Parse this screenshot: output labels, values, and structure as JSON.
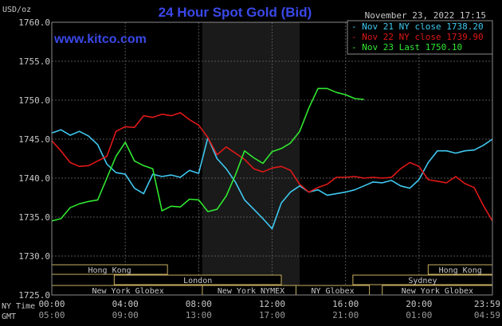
{
  "header": {
    "title": "24 Hour Spot Gold (Bid)",
    "site": "www.kitco.com",
    "timestamp": "November 23, 2022 17:15",
    "unit": "USD/oz"
  },
  "colors": {
    "background": "#000000",
    "plot_background": "#000000",
    "grid": "#555555",
    "text": "#c8c8c8",
    "title": "#3a48e8",
    "site": "#3a48e8",
    "nov21": "#3fc8f0",
    "nov22": "#e01818",
    "nov23": "#30e830",
    "session_fill": "#1a1a1a",
    "band_border": "#c8b060"
  },
  "chart_data": {
    "type": "line",
    "ylim": [
      1725,
      1760
    ],
    "y_ticks": [
      "1760.0",
      "1755.0",
      "1750.0",
      "1745.0",
      "1740.0",
      "1735.0",
      "1730.0",
      "1725.0"
    ],
    "x_ticks_ny": [
      "00:00",
      "04:00",
      "08:00",
      "12:00",
      "16:00",
      "20:00",
      "23:59"
    ],
    "x_ticks_gmt": [
      "05:00",
      "09:00",
      "13:00",
      "17:00",
      "21:00",
      "01:00",
      "04:59"
    ],
    "x_row_label_ny": "NY Time",
    "x_row_label_gmt": "GMT",
    "legend": [
      {
        "text": "Nov 21 NY close 1738.20",
        "color": "#3fc8f0"
      },
      {
        "text": "Nov 22 NY close 1739.90",
        "color": "#e01818"
      },
      {
        "text": "Nov 23 Last 1750.10",
        "color": "#30e830"
      }
    ],
    "legend_position": "top-right",
    "sessions": [
      {
        "name": "Hong Kong",
        "start": 0,
        "end": 6.3,
        "row": 0
      },
      {
        "name": "Hong Kong",
        "start": 20.5,
        "end": 24,
        "row": 0
      },
      {
        "name": "London",
        "start": 3.4,
        "end": 12.5,
        "row": 1
      },
      {
        "name": "Sydney",
        "start": 16.4,
        "end": 24,
        "row": 1
      },
      {
        "name": "New York Globex",
        "start": 0,
        "end": 8.3,
        "row": 2
      },
      {
        "name": "New York NYMEX",
        "start": 8.2,
        "end": 13.5,
        "row": 2
      },
      {
        "name": "NY Globex",
        "start": 13.3,
        "end": 17.3,
        "row": 2
      },
      {
        "name": "New York Globex",
        "start": 18.0,
        "end": 24,
        "row": 2
      }
    ],
    "highlight_range": [
      8.2,
      13.5
    ],
    "series": [
      {
        "name": "Nov 21 NY close 1738.20",
        "color": "#3fc8f0",
        "x": [
          0,
          0.5,
          1.0,
          1.5,
          2.0,
          2.5,
          3.0,
          3.5,
          4.0,
          4.5,
          5.0,
          5.5,
          6.0,
          6.5,
          7.0,
          7.5,
          8.0,
          8.5,
          9.0,
          9.5,
          10.0,
          10.5,
          11.0,
          11.5,
          12.0,
          12.5,
          13.0,
          13.5,
          14.0,
          14.5,
          15.0,
          15.5,
          16.0,
          16.5,
          17.0,
          17.5,
          18.0,
          18.5,
          19.0,
          19.5,
          20.0,
          20.5,
          21.0,
          21.5,
          22.0,
          22.5,
          23.0,
          23.5,
          24.0
        ],
        "y": [
          1745.8,
          1746.2,
          1745.5,
          1746.0,
          1745.4,
          1744.3,
          1741.8,
          1740.7,
          1740.5,
          1738.7,
          1738.0,
          1740.5,
          1740.2,
          1740.4,
          1740.1,
          1741.0,
          1740.6,
          1745.2,
          1742.5,
          1741.2,
          1739.5,
          1737.2,
          1736.0,
          1734.8,
          1733.5,
          1736.8,
          1738.2,
          1739.0,
          1738.2,
          1738.5,
          1737.8,
          1738.0,
          1738.2,
          1738.5,
          1739.0,
          1739.5,
          1739.4,
          1739.7,
          1739.0,
          1738.7,
          1739.8,
          1742.0,
          1743.5,
          1743.5,
          1743.2,
          1743.5,
          1743.6,
          1744.2,
          1745.0
        ]
      },
      {
        "name": "Nov 22 NY close 1739.90",
        "color": "#e01818",
        "x": [
          0,
          0.5,
          1.0,
          1.5,
          2.0,
          2.5,
          3.0,
          3.5,
          4.0,
          4.5,
          5.0,
          5.5,
          6.0,
          6.5,
          7.0,
          7.5,
          8.0,
          8.5,
          9.0,
          9.5,
          10.0,
          10.5,
          11.0,
          11.5,
          12.0,
          12.5,
          13.0,
          13.5,
          14.0,
          14.5,
          15.0,
          15.5,
          16.0,
          16.5,
          17.0,
          17.5,
          18.0,
          18.5,
          19.0,
          19.5,
          20.0,
          20.5,
          21.0,
          21.5,
          22.0,
          22.5,
          23.0,
          23.5,
          24.0
        ],
        "y": [
          1744.8,
          1743.5,
          1742.0,
          1741.5,
          1741.6,
          1742.2,
          1742.8,
          1746.0,
          1746.6,
          1746.5,
          1748.0,
          1747.8,
          1748.2,
          1748.0,
          1748.4,
          1747.5,
          1746.8,
          1745.2,
          1743.0,
          1744.0,
          1743.2,
          1742.4,
          1741.2,
          1740.8,
          1741.3,
          1741.5,
          1741.0,
          1739.2,
          1738.2,
          1738.8,
          1739.2,
          1740.1,
          1740.1,
          1740.2,
          1740.0,
          1740.1,
          1740.0,
          1740.1,
          1741.2,
          1742.0,
          1741.5,
          1739.8,
          1739.6,
          1739.4,
          1740.2,
          1739.3,
          1738.8,
          1736.5,
          1734.5
        ]
      },
      {
        "name": "Nov 23 Last 1750.10",
        "color": "#30e830",
        "x": [
          0,
          0.5,
          1.0,
          1.5,
          2.0,
          2.5,
          3.0,
          3.5,
          4.0,
          4.5,
          5.0,
          5.5,
          6.0,
          6.5,
          7.0,
          7.5,
          8.0,
          8.5,
          9.0,
          9.5,
          10.0,
          10.5,
          11.0,
          11.5,
          12.0,
          12.5,
          13.0,
          13.5,
          14.0,
          14.5,
          15.0,
          15.5,
          16.0,
          16.5,
          17.0
        ],
        "y": [
          1734.5,
          1734.8,
          1736.2,
          1736.7,
          1737.0,
          1737.2,
          1740.0,
          1742.8,
          1744.6,
          1742.2,
          1741.6,
          1741.2,
          1735.8,
          1736.4,
          1736.3,
          1737.3,
          1737.2,
          1735.7,
          1736.0,
          1737.7,
          1740.4,
          1743.5,
          1742.6,
          1741.9,
          1743.4,
          1743.8,
          1744.5,
          1746.0,
          1749.0,
          1751.5,
          1751.5,
          1751.0,
          1750.7,
          1750.2,
          1750.1
        ]
      }
    ]
  }
}
